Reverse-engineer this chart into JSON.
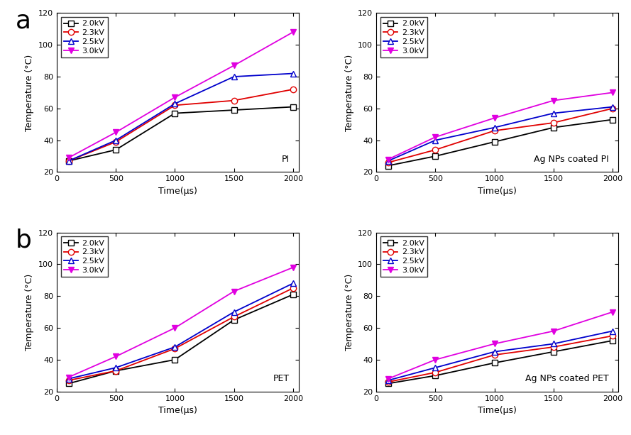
{
  "time": [
    100,
    500,
    1000,
    1500,
    2000
  ],
  "subplot_labels": [
    "a",
    "b"
  ],
  "panel_labels": [
    "PI",
    "Ag NPs coated PI",
    "PET",
    "Ag NPs coated PET"
  ],
  "legend_labels": [
    "2.0kV",
    "2.3kV",
    "2.5kV",
    "3.0kV"
  ],
  "colors": [
    "#000000",
    "#e00000",
    "#0000cc",
    "#e000e0"
  ],
  "data": {
    "PI": {
      "2.0kV": [
        27,
        34,
        57,
        59,
        61
      ],
      "2.3kV": [
        27,
        39,
        62,
        65,
        72
      ],
      "2.5kV": [
        27,
        40,
        63,
        80,
        82
      ],
      "3.0kV": [
        29,
        45,
        67,
        87,
        108
      ]
    },
    "Ag NPs coated PI": {
      "2.0kV": [
        24,
        30,
        39,
        48,
        53
      ],
      "2.3kV": [
        26,
        34,
        46,
        51,
        60
      ],
      "2.5kV": [
        27,
        40,
        48,
        57,
        61
      ],
      "3.0kV": [
        28,
        42,
        54,
        65,
        70
      ]
    },
    "PET": {
      "2.0kV": [
        25,
        33,
        40,
        65,
        81
      ],
      "2.3kV": [
        27,
        33,
        47,
        67,
        85
      ],
      "2.5kV": [
        28,
        35,
        48,
        70,
        88
      ],
      "3.0kV": [
        29,
        42,
        60,
        83,
        98
      ]
    },
    "Ag NPs coated PET": {
      "2.0kV": [
        25,
        30,
        38,
        45,
        52
      ],
      "2.3kV": [
        26,
        32,
        43,
        48,
        55
      ],
      "2.5kV": [
        27,
        35,
        45,
        50,
        58
      ],
      "3.0kV": [
        28,
        40,
        50,
        58,
        70
      ]
    }
  },
  "ylim": [
    20,
    120
  ],
  "yticks": [
    20,
    40,
    60,
    80,
    100,
    120
  ],
  "xlim": [
    0,
    2050
  ],
  "xticks": [
    0,
    500,
    1000,
    1500,
    2000
  ],
  "xlabel": "Time(μs)",
  "ylabel": "Temperature (°C)",
  "marker_styles": {
    "2.0kV": "s",
    "2.3kV": "o",
    "2.5kV": "^",
    "3.0kV": "v"
  },
  "marker_filled": {
    "2.0kV": false,
    "2.3kV": false,
    "2.5kV": false,
    "3.0kV": true
  },
  "markersize": 6,
  "linewidth": 1.3
}
